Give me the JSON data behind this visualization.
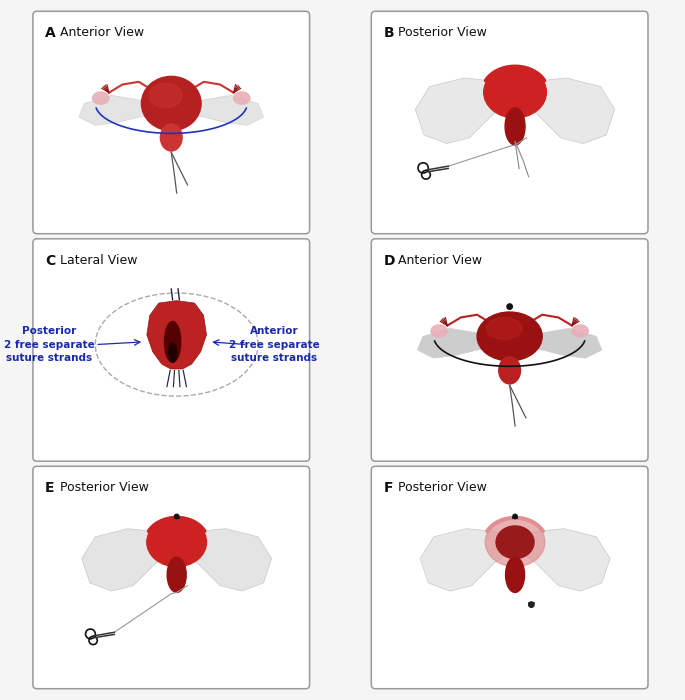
{
  "panels": [
    {
      "label": "A",
      "title": "Anterior View",
      "row": 0,
      "col": 0
    },
    {
      "label": "B",
      "title": "Posterior View",
      "row": 0,
      "col": 1
    },
    {
      "label": "C",
      "title": "Lateral View",
      "row": 1,
      "col": 0
    },
    {
      "label": "D",
      "title": "Anterior View",
      "row": 1,
      "col": 1
    },
    {
      "label": "E",
      "title": "Posterior View",
      "row": 2,
      "col": 0
    },
    {
      "label": "F",
      "title": "Posterior View",
      "row": 2,
      "col": 1
    }
  ],
  "bg_color": "#f5f5f5",
  "panel_bg": "#ffffff",
  "border_color": "#999999",
  "label_color": "#111111",
  "title_color": "#111111",
  "uterus_deep": "#8b1a1a",
  "uterus_mid": "#b52020",
  "uterus_bright": "#cc3333",
  "uterus_pink": "#e8aaaa",
  "wing_white": "#e8e8e8",
  "wing_mid": "#d0d0d0",
  "suture_dark": "#222222",
  "suture_blue": "#2233bb",
  "text_blue": "#1a2aaa",
  "label_fontsize": 10,
  "title_fontsize": 9,
  "figsize": [
    6.85,
    7.0
  ],
  "dpi": 100,
  "C_left_text": "Posterior\n2 free separate\nsuture strands",
  "C_right_text": "Anterior\n2 free separate\nsuture strands"
}
